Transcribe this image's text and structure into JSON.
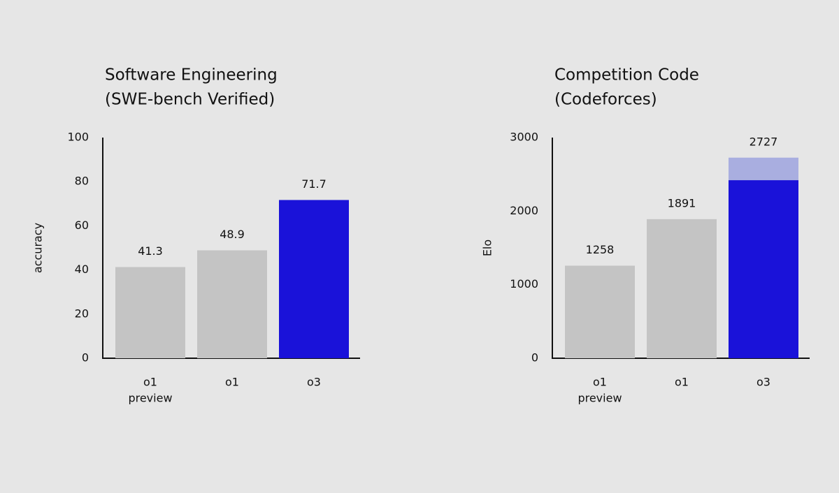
{
  "chart_data": [
    {
      "type": "bar",
      "title": [
        "Software Engineering",
        "(SWE-bench Verified)"
      ],
      "ylabel": "accuracy",
      "categories": [
        [
          "o1",
          "preview"
        ],
        [
          "o1"
        ],
        [
          "o3"
        ]
      ],
      "values": [
        41.3,
        48.9,
        71.7
      ],
      "colors": [
        "#c4c4c4",
        "#c4c4c4",
        "#1a12d9"
      ],
      "ylim": [
        0,
        100
      ],
      "yticks": [
        0,
        20,
        40,
        60,
        80,
        100
      ]
    },
    {
      "type": "bar",
      "title": [
        "Competition Code",
        "(Codeforces)"
      ],
      "ylabel": "Elo",
      "categories": [
        [
          "o1",
          "preview"
        ],
        [
          "o1"
        ],
        [
          "o3"
        ]
      ],
      "values": [
        1258,
        1891,
        2727
      ],
      "colors": [
        "#c4c4c4",
        "#c4c4c4",
        "#a9aee0"
      ],
      "overlay": {
        "values": [
          null,
          null,
          2420
        ],
        "color": "#1a12d9"
      },
      "ylim": [
        0,
        3000
      ],
      "yticks": [
        0,
        1000,
        2000,
        3000
      ]
    }
  ]
}
